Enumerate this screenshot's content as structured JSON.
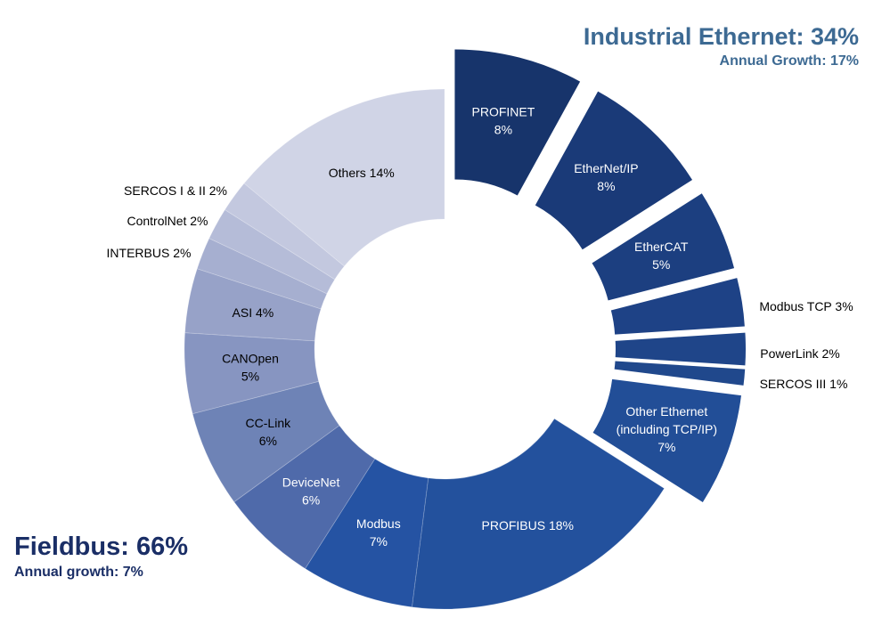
{
  "chart_data": {
    "type": "pie",
    "subtype": "donut",
    "title": "",
    "groups": [
      {
        "name": "Industrial Ethernet",
        "share": 34,
        "headline": "Industrial Ethernet: 34%",
        "growth_label": "Annual Growth: 17%",
        "exploded": true
      },
      {
        "name": "Fieldbus",
        "share": 66,
        "headline": "Fieldbus: 66%",
        "growth_label": "Annual growth: 7%",
        "exploded": false
      }
    ],
    "slices": [
      {
        "name": "PROFINET",
        "value": 8,
        "group": "Industrial Ethernet",
        "label_lines": [
          "PROFINET",
          "8%"
        ],
        "label_pos": "inside",
        "color": "#17346b",
        "text_color": "#ffffff"
      },
      {
        "name": "EtherNet/IP",
        "value": 8,
        "group": "Industrial Ethernet",
        "label_lines": [
          "EtherNet/IP",
          "8%"
        ],
        "label_pos": "inside",
        "color": "#1a3a78",
        "text_color": "#ffffff"
      },
      {
        "name": "EtherCAT",
        "value": 5,
        "group": "Industrial Ethernet",
        "label_lines": [
          "EtherCAT",
          "5%"
        ],
        "label_pos": "inside",
        "color": "#1c3f80",
        "text_color": "#ffffff"
      },
      {
        "name": "Modbus TCP",
        "value": 3,
        "group": "Industrial Ethernet",
        "label_lines": [
          "Modbus TCP 3%"
        ],
        "label_pos": "outside",
        "color": "#1e4286",
        "text_color": "#000000"
      },
      {
        "name": "PowerLink",
        "value": 2,
        "group": "Industrial Ethernet",
        "label_lines": [
          "PowerLink 2%"
        ],
        "label_pos": "outside",
        "color": "#1f4589",
        "text_color": "#000000"
      },
      {
        "name": "SERCOS III",
        "value": 1,
        "group": "Industrial Ethernet",
        "label_lines": [
          "SERCOS III 1%"
        ],
        "label_pos": "outside",
        "color": "#20488c",
        "text_color": "#000000"
      },
      {
        "name": "Other Ethernet (including TCP/IP)",
        "value": 7,
        "group": "Industrial Ethernet",
        "label_lines": [
          "Other Ethernet",
          "(including TCP/IP)",
          "7%"
        ],
        "label_pos": "inside",
        "color": "#224e97",
        "text_color": "#ffffff"
      },
      {
        "name": "PROFIBUS",
        "value": 18,
        "group": "Fieldbus",
        "label_lines": [
          "PROFIBUS 18%"
        ],
        "label_pos": "inside",
        "color": "#23519d",
        "text_color": "#ffffff"
      },
      {
        "name": "Modbus",
        "value": 7,
        "group": "Fieldbus",
        "label_lines": [
          "Modbus",
          "7%"
        ],
        "label_pos": "inside",
        "color": "#2553a3",
        "text_color": "#ffffff"
      },
      {
        "name": "DeviceNet",
        "value": 6,
        "group": "Fieldbus",
        "label_lines": [
          "DeviceNet",
          "6%"
        ],
        "label_pos": "inside",
        "color": "#4f6aaa",
        "text_color": "#ffffff"
      },
      {
        "name": "CC-Link",
        "value": 6,
        "group": "Fieldbus",
        "label_lines": [
          "CC-Link",
          "6%"
        ],
        "label_pos": "inside",
        "color": "#6e83b6",
        "text_color": "#000000"
      },
      {
        "name": "CANOpen",
        "value": 5,
        "group": "Fieldbus",
        "label_lines": [
          "CANOpen",
          "5%"
        ],
        "label_pos": "inside",
        "color": "#8795c1",
        "text_color": "#000000"
      },
      {
        "name": "ASI",
        "value": 4,
        "group": "Fieldbus",
        "label_lines": [
          "ASI 4%"
        ],
        "label_pos": "inside",
        "color": "#97a2c8",
        "text_color": "#000000"
      },
      {
        "name": "INTERBUS",
        "value": 2,
        "group": "Fieldbus",
        "label_lines": [
          "INTERBUS 2%"
        ],
        "label_pos": "outside",
        "color": "#a6afd0",
        "text_color": "#000000"
      },
      {
        "name": "ControlNet",
        "value": 2,
        "group": "Fieldbus",
        "label_lines": [
          "ControlNet 2%"
        ],
        "label_pos": "outside",
        "color": "#b5bcd8",
        "text_color": "#000000"
      },
      {
        "name": "SERCOS I & II",
        "value": 2,
        "group": "Fieldbus",
        "label_lines": [
          "SERCOS I & II 2%"
        ],
        "label_pos": "outside",
        "color": "#c3c8df",
        "text_color": "#000000"
      },
      {
        "name": "Others",
        "value": 14,
        "group": "Fieldbus",
        "label_lines": [
          "Others 14%"
        ],
        "label_pos": "inside",
        "color": "#d0d4e6",
        "text_color": "#000000"
      }
    ],
    "start_angle": "12 o'clock",
    "direction": "clockwise",
    "legend": "none"
  },
  "headings": {
    "industrial_ethernet": {
      "title": "Industrial Ethernet: 34%",
      "subtitle": "Annual Growth: 17%",
      "color": "#3d6a93"
    },
    "fieldbus": {
      "title": "Fieldbus: 66%",
      "subtitle": "Annual growth: 7%",
      "color": "#1a2e66"
    }
  }
}
